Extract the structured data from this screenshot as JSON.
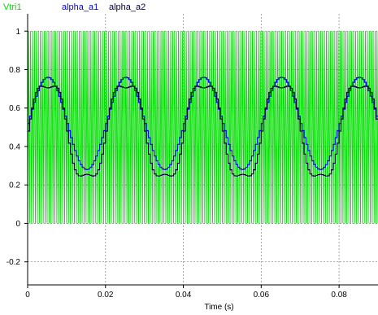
{
  "chart_data": {
    "type": "line",
    "title": "",
    "xlabel": "Time (s)",
    "ylabel": "",
    "xlim": [
      0,
      0.09
    ],
    "ylim": [
      -0.32,
      1.09
    ],
    "x_ticks": [
      0,
      0.02,
      0.04,
      0.06,
      0.08
    ],
    "x_tick_labels": [
      "0",
      "0.02",
      "0.04",
      "0.06",
      "0.08"
    ],
    "y_ticks": [
      -0.2,
      0,
      0.2,
      0.4,
      0.6,
      0.8,
      1
    ],
    "y_tick_labels": [
      "-0.2",
      "0",
      "0.2",
      "0.4",
      "0.6",
      "0.8",
      "1"
    ],
    "grid": true,
    "legend_position": "top-left",
    "series": [
      {
        "name": "Vtri1",
        "color": "#00dd00",
        "kind": "triangle",
        "min": 0,
        "max": 1,
        "frequency_hz": 2000
      },
      {
        "name": "alpha_a1",
        "color": "#0000ff",
        "kind": "sine",
        "offset": 0.52,
        "amplitude": 0.24,
        "frequency_hz": 50,
        "phase_deg": 0,
        "samples_per_period": 40
      },
      {
        "name": "alpha_a2",
        "color": "#000040",
        "kind": "sine_plus_third_harmonic",
        "offset": 0.48,
        "amplitude": 0.27,
        "third_harmonic_amplitude": 0.045,
        "frequency_hz": 50,
        "phase_deg": 0,
        "samples_per_period": 40
      }
    ]
  }
}
